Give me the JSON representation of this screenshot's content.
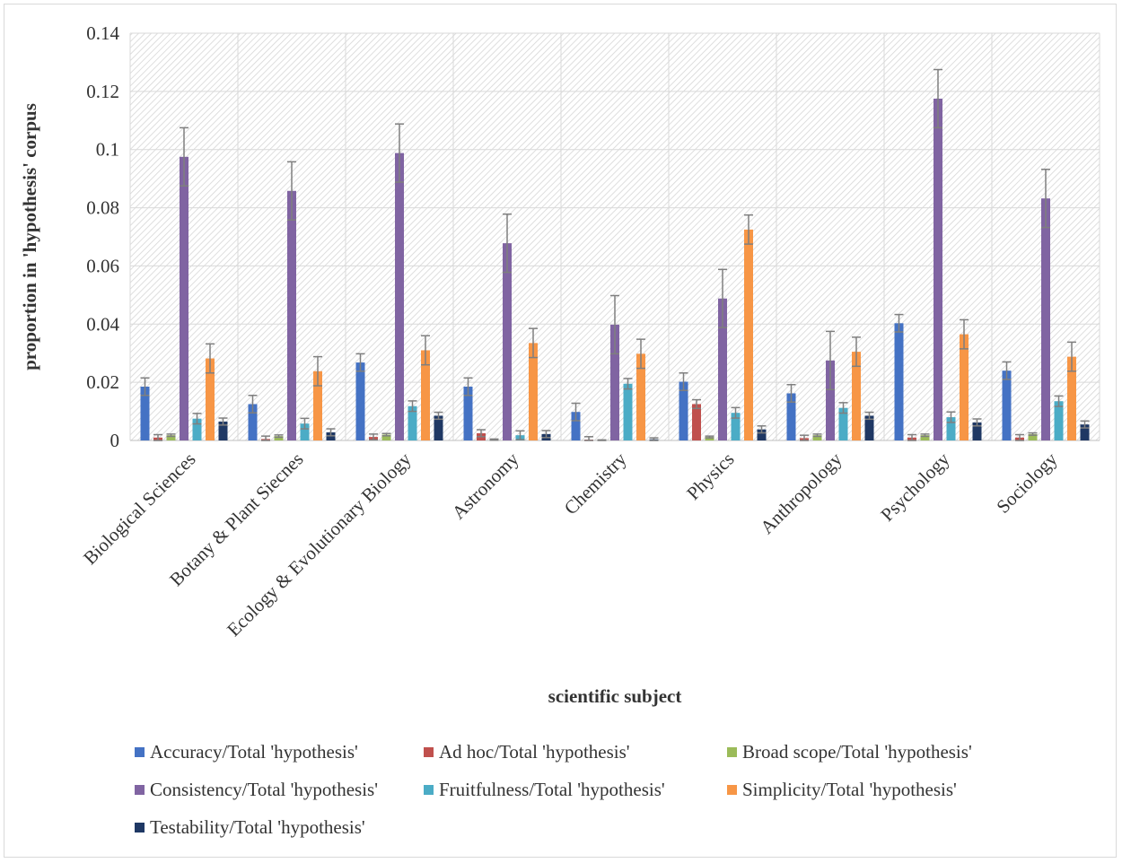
{
  "chart_data": {
    "type": "bar",
    "title": "",
    "xlabel": "scientific subject",
    "ylabel": "proportion in 'hypothesis' corpus",
    "ylim": [
      0,
      0.14
    ],
    "yticks": [
      "0",
      "0.02",
      "0.04",
      "0.06",
      "0.08",
      "0.1",
      "0.12",
      "0.14"
    ],
    "grid": true,
    "legend_position": "bottom",
    "categories": [
      "Biological Sciences",
      "Botany & Plant Siecnes",
      "Ecology & Evolutionary Biology",
      "Astronomy",
      "Chemistry",
      "Physics",
      "Anthropology",
      "Psychology",
      "Sociology"
    ],
    "series": [
      {
        "name": "Accuracy/Total 'hypothesis'",
        "color": "#4472c4",
        "values": [
          0.0185,
          0.0125,
          0.0268,
          0.0185,
          0.0098,
          0.0202,
          0.0162,
          0.0403,
          0.024
        ],
        "errors": [
          0.003,
          0.003,
          0.003,
          0.003,
          0.003,
          0.003,
          0.003,
          0.003,
          0.003
        ]
      },
      {
        "name": "Ad hoc/Total 'hypothesis'",
        "color": "#c0504d",
        "values": [
          0.001,
          0.0005,
          0.0012,
          0.0025,
          0.0003,
          0.0125,
          0.0008,
          0.001,
          0.001
        ],
        "errors": [
          0.001,
          0.001,
          0.001,
          0.0012,
          0.001,
          0.0015,
          0.001,
          0.001,
          0.001
        ]
      },
      {
        "name": "Broad scope/Total 'hypothesis'",
        "color": "#9bbb59",
        "values": [
          0.0018,
          0.0015,
          0.002,
          0.0003,
          0.0001,
          0.0012,
          0.0018,
          0.0018,
          0.0022
        ],
        "errors": [
          0.0004,
          0.0004,
          0.0004,
          0.0002,
          0.0001,
          0.0003,
          0.0004,
          0.0004,
          0.0004
        ]
      },
      {
        "name": "Consistency/Total 'hypothesis'",
        "color": "#8064a2",
        "values": [
          0.0975,
          0.0858,
          0.0988,
          0.0678,
          0.0398,
          0.0488,
          0.0275,
          0.1175,
          0.0832
        ],
        "errors": [
          0.01,
          0.01,
          0.01,
          0.01,
          0.01,
          0.01,
          0.01,
          0.01,
          0.01
        ]
      },
      {
        "name": "Fruitfulness/Total 'hypothesis'",
        "color": "#4bacc6",
        "values": [
          0.0075,
          0.0058,
          0.0118,
          0.0018,
          0.0195,
          0.0095,
          0.0112,
          0.008,
          0.0135
        ],
        "errors": [
          0.0018,
          0.0018,
          0.0018,
          0.0015,
          0.0018,
          0.0018,
          0.0018,
          0.0018,
          0.0018
        ]
      },
      {
        "name": "Simplicity/Total 'hypothesis'",
        "color": "#f79646",
        "values": [
          0.0282,
          0.0238,
          0.031,
          0.0335,
          0.0298,
          0.0725,
          0.0305,
          0.0365,
          0.0288
        ],
        "errors": [
          0.005,
          0.005,
          0.005,
          0.005,
          0.005,
          0.005,
          0.005,
          0.005,
          0.005
        ]
      },
      {
        "name": "Testability/Total 'hypothesis'",
        "color": "#1f3864",
        "values": [
          0.0065,
          0.0028,
          0.0085,
          0.0022,
          0.0004,
          0.0038,
          0.0085,
          0.0062,
          0.0055
        ],
        "errors": [
          0.0012,
          0.0012,
          0.0012,
          0.0012,
          0.0005,
          0.0012,
          0.0012,
          0.0012,
          0.0012
        ]
      }
    ]
  }
}
